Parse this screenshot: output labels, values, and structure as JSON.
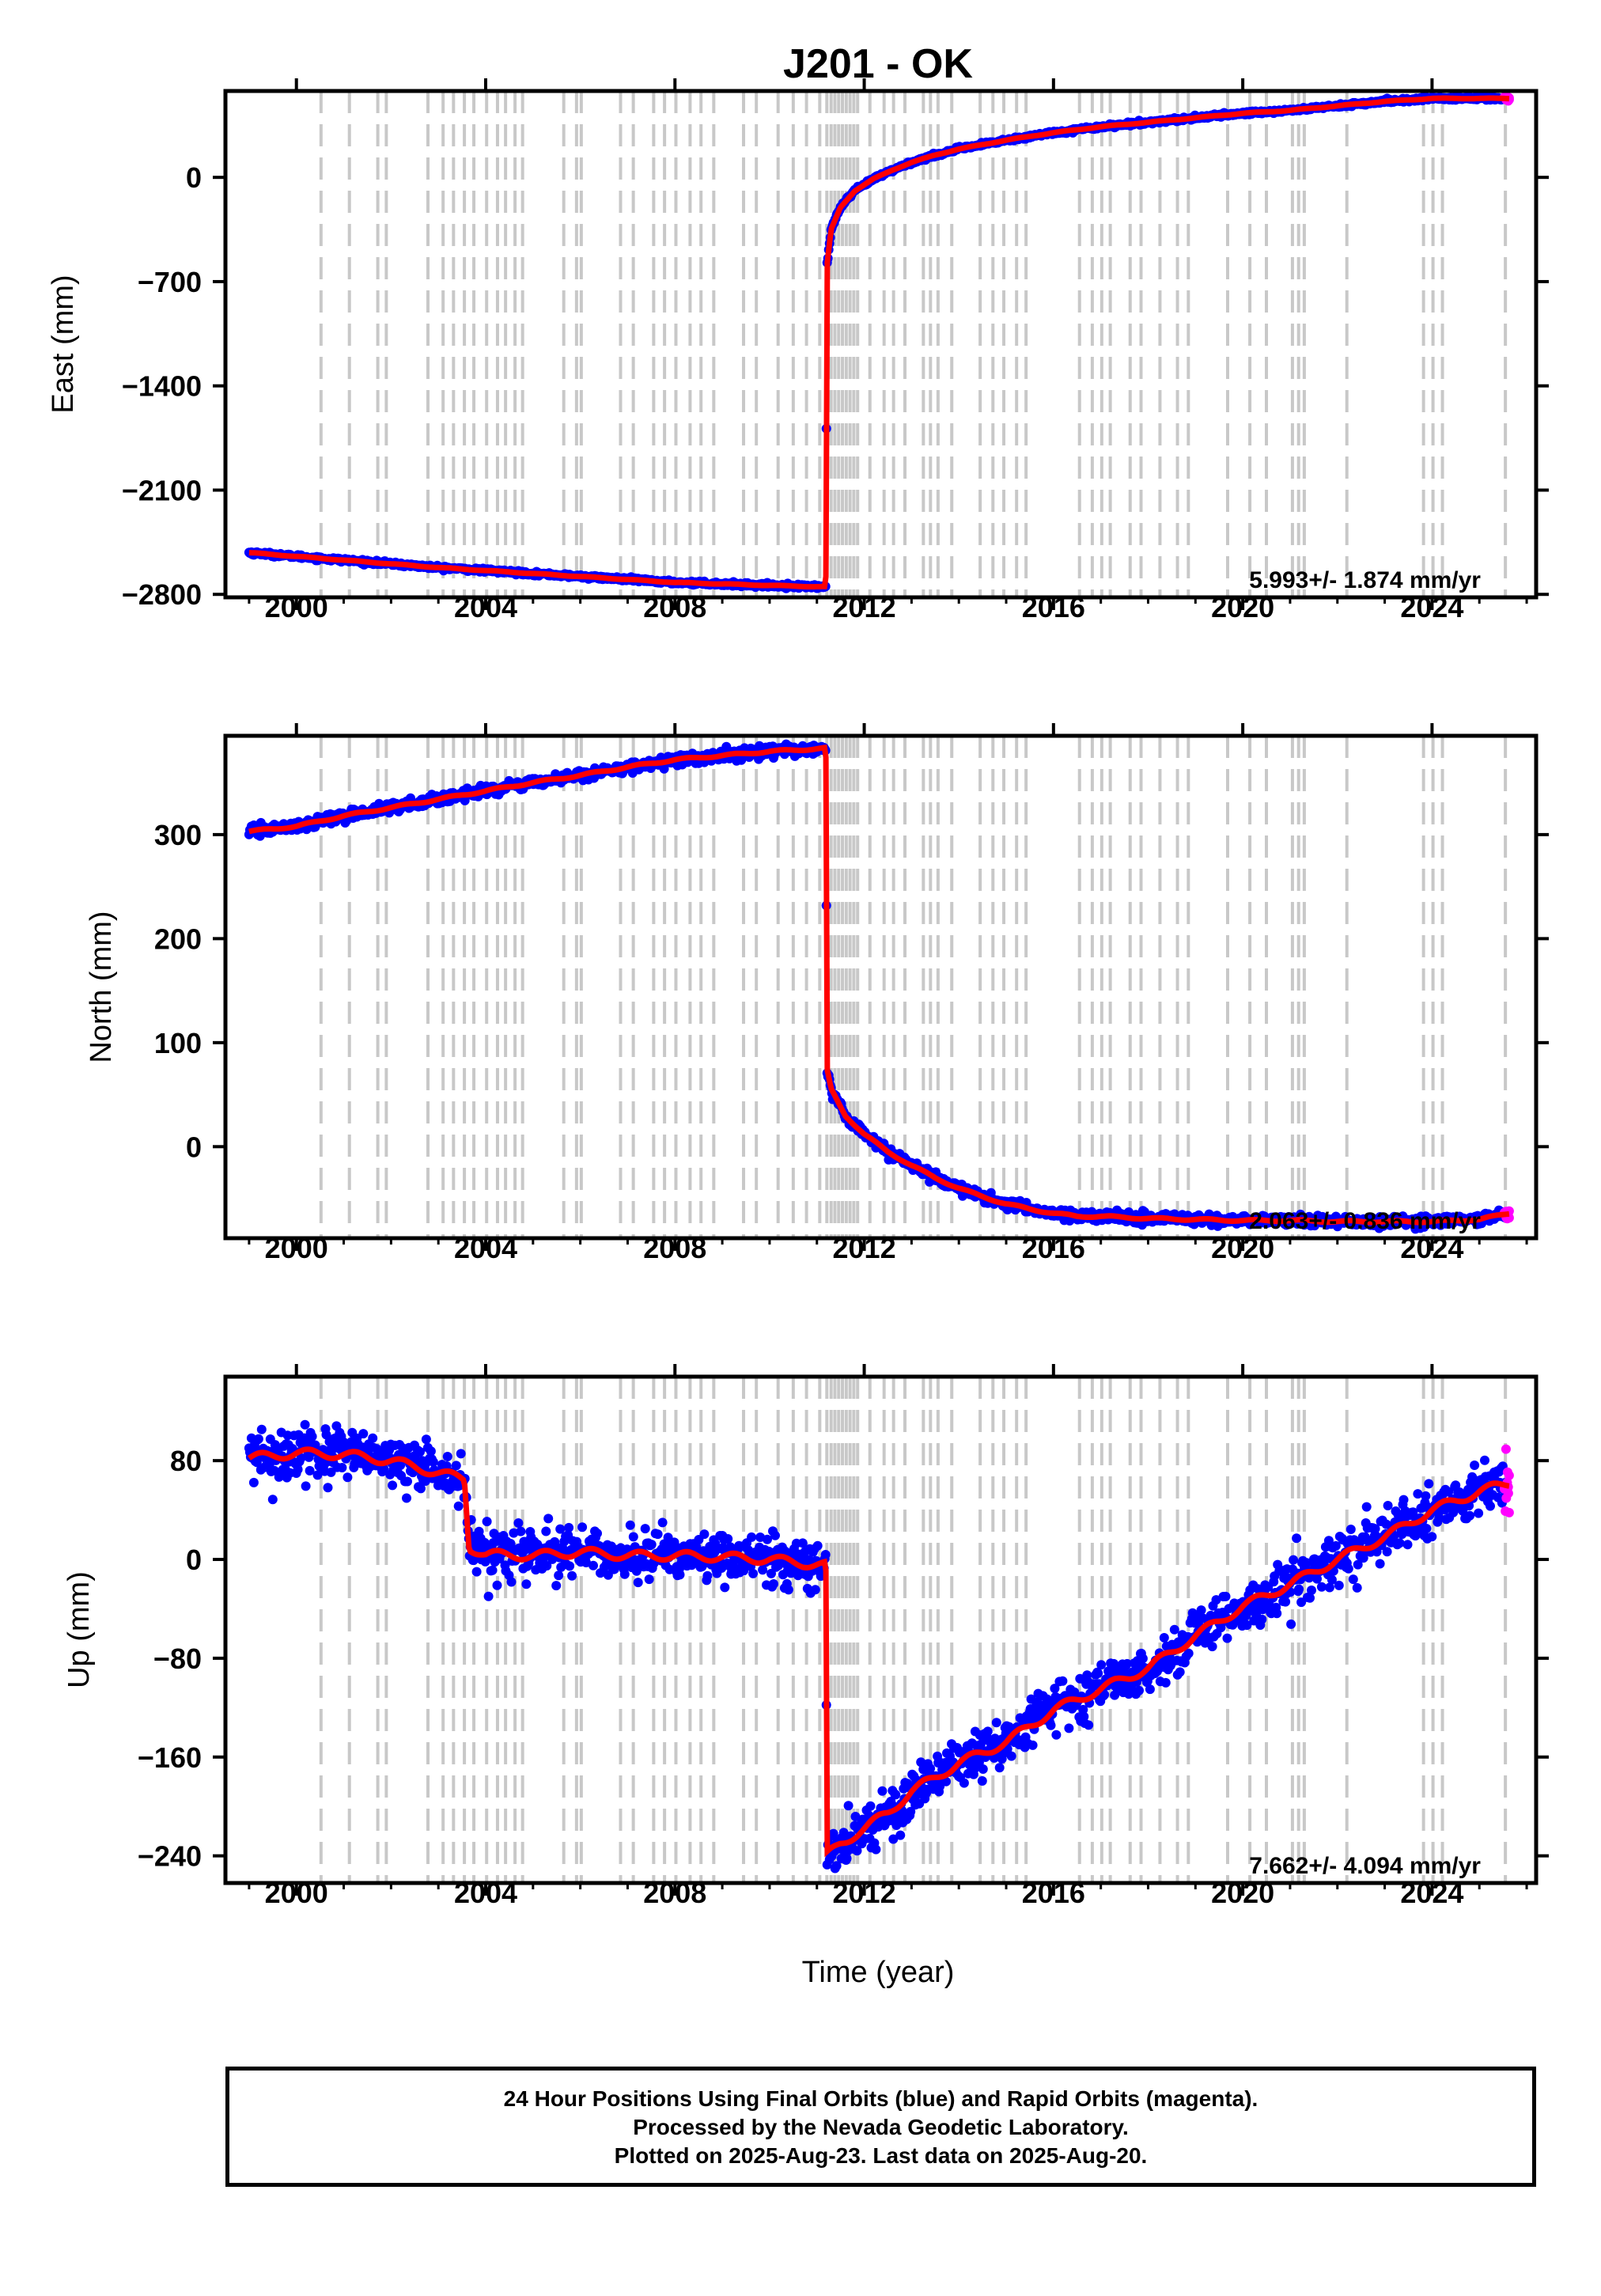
{
  "title": "J201 - OK",
  "xlabel": "Time (year)",
  "caption": {
    "line1": "24 Hour Positions Using Final Orbits (blue) and Rapid Orbits (magenta).",
    "line2": "Processed by the Nevada Geodetic Laboratory.",
    "line3": "Plotted on 2025-Aug-23. Last data on 2025-Aug-20."
  },
  "colors": {
    "final": "#0000ff",
    "rapid": "#ff00ff",
    "model": "#ff0000",
    "steps": "#c8c8c8"
  },
  "chart_data": [
    {
      "type": "scatter",
      "name": "east",
      "ylabel": "East (mm)",
      "xlim": [
        1998.5,
        2026.2
      ],
      "ylim": [
        -2820,
        580
      ],
      "xticks": [
        2000,
        2004,
        2008,
        2012,
        2016,
        2020,
        2024
      ],
      "yticks": [
        0,
        -700,
        -1400,
        -2100,
        -2800
      ],
      "ytick_labels": [
        "0",
        "−700",
        "−1400",
        "−2100",
        "−2800"
      ],
      "rate_label": "5.993+/- 1.874 mm/yr",
      "noise": 6,
      "x": [
        1999.0,
        2000.0,
        2001.0,
        2002.0,
        2003.0,
        2004.0,
        2005.0,
        2006.0,
        2007.0,
        2008.0,
        2009.0,
        2010.0,
        2011.19,
        2011.21,
        2011.3,
        2011.5,
        2011.8,
        2012.2,
        2012.6,
        2013.0,
        2013.5,
        2014.0,
        2014.5,
        2015.0,
        2016.0,
        2017.0,
        2018.0,
        2019.0,
        2020.0,
        2021.0,
        2022.0,
        2023.0,
        2024.0,
        2024.6,
        2025.0,
        2025.63
      ],
      "y": [
        -2520,
        -2545,
        -2570,
        -2595,
        -2620,
        -2640,
        -2660,
        -2680,
        -2700,
        -2720,
        -2730,
        -2740,
        -2750,
        -600,
        -350,
        -200,
        -90,
        -10,
        50,
        100,
        150,
        190,
        220,
        250,
        300,
        340,
        370,
        400,
        430,
        450,
        480,
        510,
        530,
        530,
        530,
        530
      ]
    },
    {
      "type": "scatter",
      "name": "north",
      "ylabel": "North (mm)",
      "xlim": [
        1998.5,
        2026.2
      ],
      "ylim": [
        -88,
        395
      ],
      "xticks": [
        2000,
        2004,
        2008,
        2012,
        2016,
        2020,
        2024
      ],
      "yticks": [
        300,
        200,
        100,
        0
      ],
      "ytick_labels": [
        "300",
        "200",
        "100",
        "0"
      ],
      "rate_label": "2.063+/- 0.836 mm/yr",
      "noise": 2.5,
      "x": [
        1999.0,
        2000.0,
        2001.0,
        2002.0,
        2003.0,
        2004.0,
        2005.0,
        2006.0,
        2007.0,
        2008.0,
        2009.0,
        2010.0,
        2011.19,
        2011.21,
        2011.3,
        2011.6,
        2012.0,
        2012.5,
        2013.0,
        2013.5,
        2014.0,
        2014.5,
        2015.0,
        2015.5,
        2016.0,
        2016.5,
        2017.0,
        2018.0,
        2019.0,
        2020.0,
        2021.0,
        2022.0,
        2023.0,
        2024.0,
        2025.0,
        2025.63
      ],
      "y": [
        303,
        308,
        318,
        326,
        334,
        342,
        350,
        357,
        365,
        372,
        376,
        380,
        383,
        75,
        55,
        30,
        12,
        -5,
        -18,
        -30,
        -40,
        -48,
        -55,
        -60,
        -64,
        -67,
        -67,
        -69,
        -70,
        -71,
        -71,
        -72,
        -72,
        -72,
        -70,
        -64
      ]
    },
    {
      "type": "scatter",
      "name": "up",
      "ylabel": "Up (mm)",
      "xlim": [
        1998.5,
        2026.2
      ],
      "ylim": [
        -262,
        148
      ],
      "xticks": [
        2000,
        2004,
        2008,
        2012,
        2016,
        2020,
        2024
      ],
      "yticks": [
        80,
        0,
        -80,
        -160,
        -240
      ],
      "ytick_labels": [
        "80",
        "0",
        "−80",
        "−160",
        "−240"
      ],
      "rate_label": "7.662+/- 4.094 mm/yr",
      "noise": 10,
      "x": [
        1999.0,
        2000.0,
        2001.0,
        2002.0,
        2003.0,
        2003.55,
        2003.65,
        2004.0,
        2005.0,
        2006.0,
        2007.0,
        2008.0,
        2009.0,
        2010.0,
        2011.19,
        2011.21,
        2011.5,
        2012.0,
        2012.5,
        2013.0,
        2014.0,
        2015.0,
        2016.0,
        2017.0,
        2018.0,
        2019.0,
        2020.0,
        2021.0,
        2022.0,
        2023.0,
        2024.0,
        2025.0,
        2025.63
      ],
      "y": [
        82,
        86,
        85,
        80,
        70,
        65,
        10,
        4,
        3,
        6,
        3,
        3,
        2,
        0,
        -5,
        -240,
        -230,
        -218,
        -205,
        -188,
        -165,
        -148,
        -122,
        -105,
        -88,
        -62,
        -38,
        -20,
        0,
        18,
        40,
        55,
        62
      ]
    }
  ],
  "step_epochs": [
    2000.52,
    2001.12,
    2001.72,
    2001.9,
    2002.78,
    2003.1,
    2003.32,
    2003.55,
    2003.75,
    2004.02,
    2004.25,
    2004.42,
    2004.62,
    2004.78,
    2005.65,
    2005.92,
    2006.02,
    2006.85,
    2007.12,
    2007.55,
    2007.78,
    2008.02,
    2008.32,
    2008.55,
    2008.82,
    2009.45,
    2009.72,
    2010.18,
    2010.5,
    2010.78,
    2011.06,
    2011.21,
    2011.3,
    2011.38,
    2011.46,
    2011.54,
    2011.62,
    2011.7,
    2011.78,
    2011.86,
    2012.12,
    2012.42,
    2012.62,
    2012.86,
    2013.25,
    2013.4,
    2013.56,
    2013.85,
    2014.45,
    2014.72,
    2014.95,
    2015.22,
    2015.42,
    2016.55,
    2016.82,
    2017.02,
    2017.2,
    2017.62,
    2017.85,
    2018.25,
    2018.62,
    2018.85,
    2019.68,
    2020.15,
    2020.5,
    2021.05,
    2021.18,
    2021.3,
    2022.2,
    2023.82,
    2024.02,
    2024.22,
    2025.55
  ],
  "rapid_window": [
    2025.55,
    2025.63
  ]
}
